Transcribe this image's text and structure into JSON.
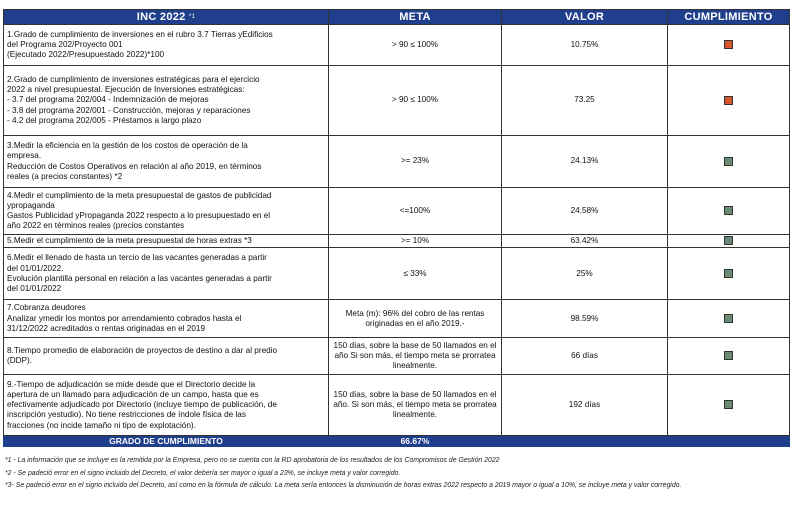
{
  "header": {
    "col_inc": "INC 2022",
    "col_inc_sup": "*1",
    "col_meta": "META",
    "col_valor": "VALOR",
    "col_cumplimiento": "CUMPLIMIENTO"
  },
  "rows": [
    {
      "desc": [
        "1.Grado de cumplimiento de inversiones en el rubro 3.7 Tierras yEdificios",
        "del Programa 202/Proyecto 001",
        " (Ejecutado 2022/Presupuestado 2022)*100"
      ],
      "meta": [
        "> 90 ≤ 100%"
      ],
      "valor": "10.75%",
      "status": "red"
    },
    {
      "desc": [
        "2.Grado de cumplimiento de inversiones estratégicas para el ejercicio",
        "2022 a nivel presupuestal. Ejecución de Inversiones estratégicas:",
        "- 3.7 del programa 202/004 - Indemnización de mejoras",
        "- 3.8 del programa 202/001 - Construcción, mejoras y reparaciones",
        "- 4.2 del programa 202/005 - Préstamos a largo plazo"
      ],
      "meta": [
        "> 90 ≤ 100%"
      ],
      "valor": "73.25",
      "status": "red"
    },
    {
      "desc": [
        "3.Medir la eficiencia en la gestión de los costos de operación de la",
        "empresa.",
        "Reducción de Costos Operativos en relación al año 2019, en términos",
        "reales (a precios constantes) *2"
      ],
      "meta": [
        ">= 23%"
      ],
      "valor": "24.13%",
      "status": "green"
    },
    {
      "desc": [
        "4.Medir el cumplimiento de la meta presupuestal de gastos de publicidad",
        "ypropaganda",
        "Gastos Publicidad yPropaganda 2022 respecto a lo presupuestado en el",
        "año 2022 en términos reales (precios constantes"
      ],
      "meta": [
        "<=100%"
      ],
      "valor": "24.58%",
      "status": "green"
    },
    {
      "desc": [
        "5.Medir el cumplimiento de la meta presupuestal de horas extras *3"
      ],
      "meta": [
        ">= 10%"
      ],
      "valor": "63.42%",
      "status": "green"
    },
    {
      "desc": [
        "6.Medir el llenado de hasta un tercio de las vacantes generadas a partir",
        "del 01/01/2022.",
        "Evolución plantilla personal en relación a las vacantes generadas a partir",
        "del 01/01/2022"
      ],
      "meta": [
        "≤ 33%"
      ],
      "valor": "25%",
      "status": "green"
    },
    {
      "desc": [
        "7.Cobranza deudores",
        "Analizar ymedir los montos por arrendamiento cobrados hasta el",
        "31/12/2022 acreditados o rentas originadas en el 2019"
      ],
      "meta": [
        "Meta (m): 96% del cobro de las rentas",
        "originadas en el año 2019.-"
      ],
      "valor": "98.59%",
      "status": "green"
    },
    {
      "desc": [
        "8.Tiempo promedio de elaboración de proyectos de destino a dar al predio",
        "(DDP)."
      ],
      "meta": [
        "150 días, sobre la base de 50 llamados en el",
        "año Si son más, el tiempo meta se prorratea",
        "linealmente."
      ],
      "valor": "66 días",
      "status": "green"
    },
    {
      "desc": [
        "9.-Tiempo de adjudicación se mide desde que el Directorio decide la",
        "apertura de un llamado para adjudicación de un campo, hasta que es",
        "efectivamente adjudicado por Directorio (incluye tiempo de publicación, de",
        "inscripción yestudio). No tiene restricciones de índole física de las",
        "fracciones (no incide tamaño ni tipo de explotación)."
      ],
      "meta": [
        "150 días, sobre la base de 50 llamados en el",
        "año. Si son más, el tiempo meta se prorratea",
        "linealmente."
      ],
      "valor": "192 días",
      "status": "green"
    }
  ],
  "total": {
    "label": "GRADO DE CUMPLIMIENTO",
    "value": "66.67%"
  },
  "notes": [
    "*1 - La información que se incluye es la remitida por la Empresa, pero no se cuenta con la RD aprobatoria de los resultados de los Compromisos de Gestión 2022",
    "*2 - Se padeció error en el signo incluido del Decreto, el valor debería ser mayor o igual a 23%, se incluye meta y valor corregido.",
    "*3- Se padeció error en el signo incluido del Decreto, así como en la fórmula de cálculo. La meta sería entonces la disminución de horas extras 2022 respecto a 2019 mayor o igual a 10%, se incluye meta y valor corregido."
  ],
  "colors": {
    "header_bg": "#1f3f8c",
    "status_red": "#d4552e",
    "status_green": "#6a8a74"
  }
}
